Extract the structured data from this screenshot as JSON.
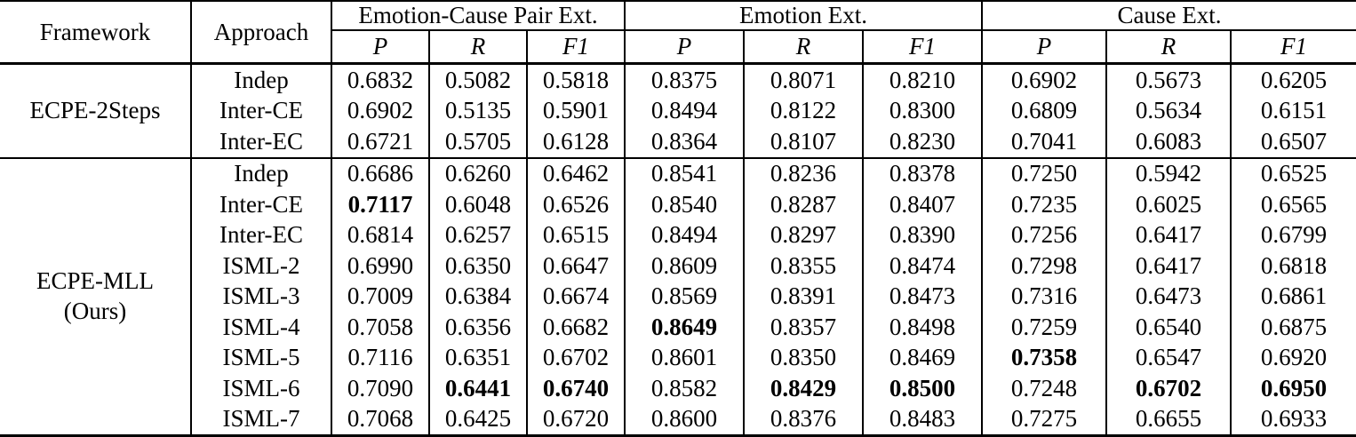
{
  "table": {
    "header": {
      "framework": "Framework",
      "approach": "Approach",
      "groups": [
        {
          "label": "Emotion-Cause Pair Ext.",
          "metrics": [
            "P",
            "R",
            "F1"
          ]
        },
        {
          "label": "Emotion Ext.",
          "metrics": [
            "P",
            "R",
            "F1"
          ]
        },
        {
          "label": "Cause Ext.",
          "metrics": [
            "P",
            "R",
            "F1"
          ]
        }
      ]
    },
    "sections": [
      {
        "framework_lines": [
          "ECPE-2Steps"
        ],
        "rows": [
          {
            "approach": "Indep",
            "values": [
              "0.6832",
              "0.5082",
              "0.5818",
              "0.8375",
              "0.8071",
              "0.8210",
              "0.6902",
              "0.5673",
              "0.6205"
            ],
            "bold": []
          },
          {
            "approach": "Inter-CE",
            "values": [
              "0.6902",
              "0.5135",
              "0.5901",
              "0.8494",
              "0.8122",
              "0.8300",
              "0.6809",
              "0.5634",
              "0.6151"
            ],
            "bold": []
          },
          {
            "approach": "Inter-EC",
            "values": [
              "0.6721",
              "0.5705",
              "0.6128",
              "0.8364",
              "0.8107",
              "0.8230",
              "0.7041",
              "0.6083",
              "0.6507"
            ],
            "bold": []
          }
        ]
      },
      {
        "framework_lines": [
          "ECPE-MLL",
          "(Ours)"
        ],
        "rows": [
          {
            "approach": "Indep",
            "values": [
              "0.6686",
              "0.6260",
              "0.6462",
              "0.8541",
              "0.8236",
              "0.8378",
              "0.7250",
              "0.5942",
              "0.6525"
            ],
            "bold": []
          },
          {
            "approach": "Inter-CE",
            "values": [
              "0.7117",
              "0.6048",
              "0.6526",
              "0.8540",
              "0.8287",
              "0.8407",
              "0.7235",
              "0.6025",
              "0.6565"
            ],
            "bold": [
              0
            ]
          },
          {
            "approach": "Inter-EC",
            "values": [
              "0.6814",
              "0.6257",
              "0.6515",
              "0.8494",
              "0.8297",
              "0.8390",
              "0.7256",
              "0.6417",
              "0.6799"
            ],
            "bold": []
          },
          {
            "approach": "ISML-2",
            "values": [
              "0.6990",
              "0.6350",
              "0.6647",
              "0.8609",
              "0.8355",
              "0.8474",
              "0.7298",
              "0.6417",
              "0.6818"
            ],
            "bold": []
          },
          {
            "approach": "ISML-3",
            "values": [
              "0.7009",
              "0.6384",
              "0.6674",
              "0.8569",
              "0.8391",
              "0.8473",
              "0.7316",
              "0.6473",
              "0.6861"
            ],
            "bold": []
          },
          {
            "approach": "ISML-4",
            "values": [
              "0.7058",
              "0.6356",
              "0.6682",
              "0.8649",
              "0.8357",
              "0.8498",
              "0.7259",
              "0.6540",
              "0.6875"
            ],
            "bold": [
              3
            ]
          },
          {
            "approach": "ISML-5",
            "values": [
              "0.7116",
              "0.6351",
              "0.6702",
              "0.8601",
              "0.8350",
              "0.8469",
              "0.7358",
              "0.6547",
              "0.6920"
            ],
            "bold": [
              6
            ]
          },
          {
            "approach": "ISML-6",
            "values": [
              "0.7090",
              "0.6441",
              "0.6740",
              "0.8582",
              "0.8429",
              "0.8500",
              "0.7248",
              "0.6702",
              "0.6950"
            ],
            "bold": [
              1,
              2,
              4,
              5,
              7,
              8
            ]
          },
          {
            "approach": "ISML-7",
            "values": [
              "0.7068",
              "0.6425",
              "0.6720",
              "0.8600",
              "0.8376",
              "0.8483",
              "0.7275",
              "0.6655",
              "0.6933"
            ],
            "bold": []
          }
        ]
      }
    ]
  }
}
